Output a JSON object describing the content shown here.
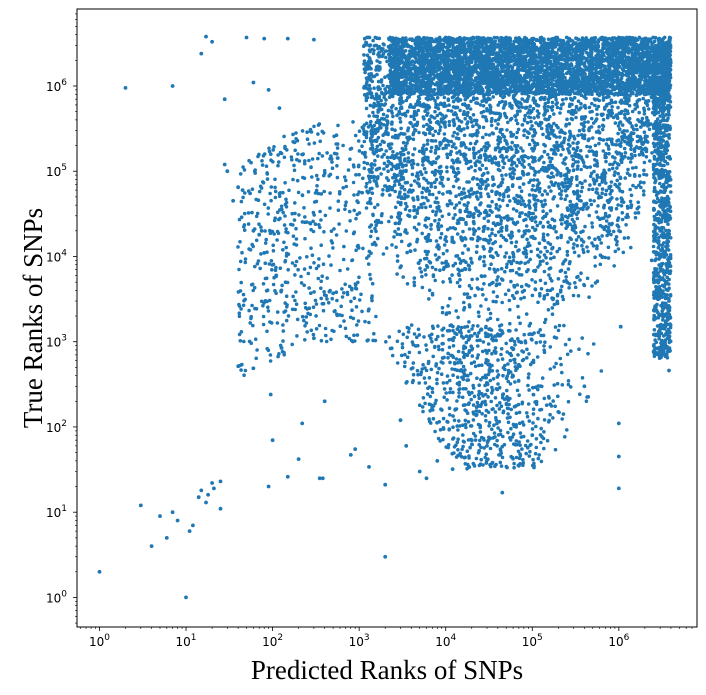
{
  "chart_data": {
    "type": "scatter",
    "title": "",
    "xlabel": "Predicted Ranks of SNPs",
    "ylabel": "True Ranks of SNPs",
    "xscale": "log",
    "yscale": "log",
    "xlim": [
      0.55,
      8000000
    ],
    "ylim": [
      0.45,
      8000000
    ],
    "x_ticks": [
      {
        "base": "10",
        "exp": "0",
        "value": 1
      },
      {
        "base": "10",
        "exp": "1",
        "value": 10
      },
      {
        "base": "10",
        "exp": "2",
        "value": 100
      },
      {
        "base": "10",
        "exp": "3",
        "value": 1000
      },
      {
        "base": "10",
        "exp": "4",
        "value": 10000
      },
      {
        "base": "10",
        "exp": "5",
        "value": 100000
      },
      {
        "base": "10",
        "exp": "6",
        "value": 1000000
      }
    ],
    "y_ticks": [
      {
        "base": "10",
        "exp": "0",
        "value": 1
      },
      {
        "base": "10",
        "exp": "1",
        "value": 10
      },
      {
        "base": "10",
        "exp": "2",
        "value": 100
      },
      {
        "base": "10",
        "exp": "3",
        "value": 1000
      },
      {
        "base": "10",
        "exp": "4",
        "value": 10000
      },
      {
        "base": "10",
        "exp": "5",
        "value": 100000
      },
      {
        "base": "10",
        "exp": "6",
        "value": 1000000
      }
    ],
    "marker_color": "#1f77b4",
    "grid": false,
    "legend": "none",
    "series": [
      {
        "points": [
          [
            1,
            2
          ],
          [
            2,
            950000
          ],
          [
            3,
            12
          ],
          [
            4,
            4
          ],
          [
            5,
            9
          ],
          [
            6,
            5
          ],
          [
            7,
            10
          ],
          [
            8,
            8
          ],
          [
            10,
            1
          ],
          [
            11,
            6
          ],
          [
            12,
            7
          ],
          [
            14,
            15
          ],
          [
            15,
            18
          ],
          [
            17,
            13
          ],
          [
            18,
            16
          ],
          [
            20,
            22
          ],
          [
            21,
            19
          ],
          [
            25,
            11
          ],
          [
            25,
            23
          ],
          [
            15,
            2400000
          ],
          [
            17,
            3800000
          ],
          [
            20,
            3300000
          ],
          [
            28,
            700000
          ],
          [
            7,
            1000000
          ],
          [
            28,
            120000
          ],
          [
            30,
            100000
          ],
          [
            35,
            45000
          ],
          [
            40,
            65000
          ],
          [
            45,
            60000
          ],
          [
            50,
            3700000
          ],
          [
            55,
            55000
          ],
          [
            60,
            20000
          ],
          [
            70,
            18000
          ],
          [
            80,
            11000
          ],
          [
            90,
            900000
          ],
          [
            90,
            20
          ],
          [
            95,
            240
          ],
          [
            100,
            70
          ],
          [
            110,
            6000
          ],
          [
            120,
            550000
          ],
          [
            150,
            26
          ],
          [
            200,
            42
          ],
          [
            220,
            110
          ],
          [
            300,
            1100
          ],
          [
            350,
            25
          ],
          [
            380,
            25
          ],
          [
            400,
            200
          ],
          [
            500,
            3700
          ],
          [
            800,
            47
          ],
          [
            900,
            55
          ],
          [
            1300,
            34
          ],
          [
            2000,
            3
          ],
          [
            2000,
            21
          ],
          [
            2500,
            3600000
          ],
          [
            3000,
            120
          ],
          [
            3500,
            60
          ],
          [
            5000,
            30
          ],
          [
            6000,
            25
          ],
          [
            8000,
            40
          ],
          [
            12000,
            32
          ],
          [
            20000,
            70
          ],
          [
            30000,
            60
          ],
          [
            45000,
            17
          ],
          [
            70000,
            35
          ],
          [
            100000,
            80
          ],
          [
            200000,
            150
          ],
          [
            400000,
            300
          ],
          [
            1000000,
            19
          ],
          [
            1000000,
            45
          ],
          [
            1000000,
            110
          ],
          [
            1050000,
            1500
          ],
          [
            3800000,
            460
          ],
          [
            3800000,
            3000
          ],
          [
            2400000,
            9000
          ],
          [
            2000000,
            3600000
          ],
          [
            1000000,
            3700000
          ],
          [
            500000,
            3600000
          ],
          [
            250000,
            3700000
          ],
          [
            100000,
            3600000
          ],
          [
            50000,
            3700000
          ],
          [
            20000,
            3600000
          ],
          [
            10000,
            3700000
          ],
          [
            5000,
            3600000
          ],
          [
            300,
            3500000
          ],
          [
            150,
            3600000
          ],
          [
            80,
            3600000
          ],
          [
            60,
            1100000
          ]
        ]
      }
    ]
  }
}
